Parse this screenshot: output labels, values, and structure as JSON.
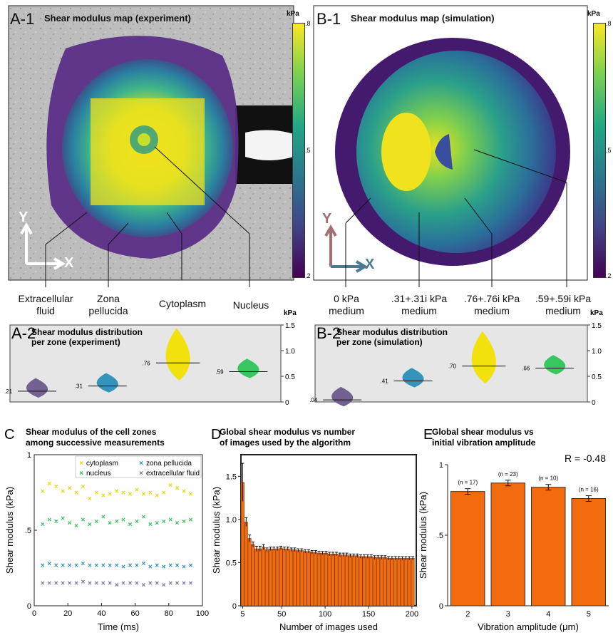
{
  "panelA1": {
    "letter": "A-1",
    "title": "Shear modulus map (experiment)",
    "colorbar_unit": "kPa",
    "colorbar_ticks": [
      ".8",
      ".5",
      ".2"
    ],
    "axis_y": "Y",
    "axis_x": "X",
    "zones": [
      {
        "line1": "Extracellular",
        "line2": "fluid"
      },
      {
        "line1": "Zona",
        "line2": "pellucida"
      },
      {
        "line1": "Cytoplasm",
        "line2": ""
      },
      {
        "line1": "Nucleus",
        "line2": ""
      }
    ]
  },
  "panelB1": {
    "letter": "B-1",
    "title": "Shear modulus map (simulation)",
    "colorbar_unit": "kPa",
    "colorbar_ticks": [
      ".8",
      ".5",
      ".2"
    ],
    "axis_y": "Y",
    "axis_x": "X",
    "zones": [
      {
        "line1": "0 kPa",
        "line2": "medium"
      },
      {
        "line1": ".31+.31i kPa",
        "line2": "medium"
      },
      {
        "line1": ".76+.76i kPa",
        "line2": "medium"
      },
      {
        "line1": ".59+.59i kPa",
        "line2": "medium"
      }
    ]
  },
  "chart_data": [
    {
      "id": "A-2",
      "type": "violin",
      "title": "Shear modulus distribution per zone (experiment)",
      "letter": "A-2",
      "title_line1": "Shear modulus distribution",
      "title_line2": "per zone (experiment)",
      "ylabel_unit": "kPa",
      "ylim": [
        0,
        1.5
      ],
      "yticks": [
        "0",
        "0.5",
        "1.0",
        "1.5"
      ],
      "groups": [
        {
          "median": 0.21,
          "label": ".21",
          "color": "#6b5a8c"
        },
        {
          "median": 0.31,
          "label": ".31",
          "color": "#2a8fb8"
        },
        {
          "median": 0.76,
          "label": ".76",
          "color": "#f2e000"
        },
        {
          "median": 0.59,
          "label": ".59",
          "color": "#2ec45a"
        }
      ]
    },
    {
      "id": "B-2",
      "type": "violin",
      "title": "Shear modulus distribution per zone (simulation)",
      "letter": "B-2",
      "title_line1": "Shear modulus distribution",
      "title_line2": "per zone (simulation)",
      "ylabel_unit": "kPa",
      "ylim": [
        0,
        1.5
      ],
      "yticks": [
        "0",
        "0.5",
        "1.0",
        "1.5"
      ],
      "groups": [
        {
          "median": 0.04,
          "label": ".04",
          "color": "#6b5a8c"
        },
        {
          "median": 0.41,
          "label": ".41",
          "color": "#2a8fb8"
        },
        {
          "median": 0.7,
          "label": ".70",
          "color": "#f2e000"
        },
        {
          "median": 0.66,
          "label": ".66",
          "color": "#2ec45a"
        }
      ]
    },
    {
      "id": "C",
      "type": "scatter",
      "letter": "C",
      "title_line1": "Shear modulus of the cell zones",
      "title_line2": "among successive measurements",
      "xlabel": "Time (ms)",
      "ylabel": "Shear modulus (kPa)",
      "xlim": [
        0,
        100
      ],
      "ylim": [
        0,
        1.0
      ],
      "xticks": [
        "0",
        "20",
        "40",
        "60",
        "80",
        "100"
      ],
      "yticks": [
        {
          "v": 0,
          "t": "0"
        },
        {
          "v": 0.5,
          "t": ".5"
        },
        {
          "v": 1.0,
          "t": "1"
        }
      ],
      "x": [
        5,
        9,
        13,
        17,
        21,
        25,
        29,
        33,
        37,
        41,
        45,
        49,
        53,
        57,
        61,
        65,
        69,
        73,
        77,
        81,
        85,
        89,
        93
      ],
      "series": [
        {
          "name": "cytoplasm",
          "color": "#e6d600",
          "values": [
            0.76,
            0.81,
            0.79,
            0.76,
            0.78,
            0.75,
            0.79,
            0.71,
            0.75,
            0.73,
            0.74,
            0.76,
            0.75,
            0.74,
            0.77,
            0.74,
            0.75,
            0.73,
            0.75,
            0.8,
            0.78,
            0.76,
            0.74
          ]
        },
        {
          "name": "nucleus",
          "color": "#2ec45a",
          "values": [
            0.54,
            0.57,
            0.56,
            0.58,
            0.55,
            0.53,
            0.57,
            0.54,
            0.56,
            0.59,
            0.55,
            0.56,
            0.57,
            0.54,
            0.56,
            0.59,
            0.54,
            0.55,
            0.56,
            0.57,
            0.55,
            0.56,
            0.57
          ]
        },
        {
          "name": "zona pellucida",
          "color": "#2a8fb8",
          "values": [
            0.27,
            0.28,
            0.27,
            0.27,
            0.27,
            0.27,
            0.28,
            0.27,
            0.27,
            0.27,
            0.27,
            0.27,
            0.26,
            0.27,
            0.27,
            0.28,
            0.26,
            0.27,
            0.26,
            0.27,
            0.27,
            0.26,
            0.27
          ]
        },
        {
          "name": "extracellular fluid",
          "color": "#7a6f9a",
          "values": [
            0.15,
            0.15,
            0.15,
            0.15,
            0.15,
            0.15,
            0.16,
            0.15,
            0.15,
            0.15,
            0.15,
            0.14,
            0.15,
            0.15,
            0.15,
            0.14,
            0.15,
            0.15,
            0.14,
            0.15,
            0.15,
            0.15,
            0.15
          ]
        }
      ]
    },
    {
      "id": "D",
      "type": "bar",
      "letter": "D",
      "title_line1": "Global shear modulus vs number",
      "title_line2": "of images used by the algorithm",
      "xlabel": "Number of images used",
      "ylabel": "Shear modulus (kPa)",
      "xlim": [
        3,
        205
      ],
      "ylim": [
        0,
        1.75
      ],
      "xticks": [
        "5",
        "50",
        "100",
        "150",
        "200"
      ],
      "yticks": [
        {
          "v": 0,
          "t": "0"
        },
        {
          "v": 0.5,
          "t": "0.5"
        },
        {
          "v": 1.0,
          "t": "1.0"
        },
        {
          "v": 1.5,
          "t": "1.5"
        }
      ],
      "x": [
        5,
        9,
        13,
        17,
        21,
        25,
        29,
        33,
        37,
        41,
        45,
        49,
        53,
        57,
        61,
        65,
        69,
        73,
        77,
        81,
        85,
        89,
        93,
        97,
        101,
        105,
        109,
        113,
        117,
        121,
        125,
        129,
        133,
        137,
        141,
        145,
        149,
        153,
        157,
        161,
        165,
        169,
        173,
        177,
        181,
        185,
        189,
        193,
        197,
        201
      ],
      "values": [
        1.43,
        0.97,
        0.78,
        0.71,
        0.66,
        0.66,
        0.68,
        0.65,
        0.66,
        0.66,
        0.66,
        0.67,
        0.66,
        0.66,
        0.65,
        0.65,
        0.64,
        0.64,
        0.63,
        0.63,
        0.62,
        0.62,
        0.61,
        0.61,
        0.61,
        0.6,
        0.6,
        0.6,
        0.59,
        0.59,
        0.59,
        0.58,
        0.58,
        0.58,
        0.57,
        0.57,
        0.57,
        0.57,
        0.56,
        0.56,
        0.56,
        0.56,
        0.55,
        0.55,
        0.55,
        0.55,
        0.55,
        0.55,
        0.55,
        0.55
      ],
      "errors": [
        0.22,
        0.05,
        0.04,
        0.03,
        0.03,
        0.03,
        0.03,
        0.02,
        0.02,
        0.02,
        0.02,
        0.02,
        0.02,
        0.02,
        0.02,
        0.02,
        0.02,
        0.02,
        0.02,
        0.02,
        0.02,
        0.02,
        0.02,
        0.02,
        0.02,
        0.02,
        0.02,
        0.02,
        0.02,
        0.02,
        0.02,
        0.02,
        0.02,
        0.02,
        0.02,
        0.02,
        0.02,
        0.02,
        0.02,
        0.02,
        0.02,
        0.02,
        0.02,
        0.02,
        0.02,
        0.02,
        0.02,
        0.02,
        0.02,
        0.02
      ],
      "color": "#f26b0f"
    },
    {
      "id": "E",
      "type": "bar",
      "letter": "E",
      "title_line1": "Global shear modulus vs",
      "title_line2": "initial vibration amplitude",
      "annotation": "R =  -0.48",
      "xlabel": "Vibration amplitude (μm)",
      "ylabel": "Shear modulus (kPa)",
      "ylim": [
        0,
        1.0
      ],
      "yticks": [
        {
          "v": 0,
          "t": "0"
        },
        {
          "v": 0.5,
          "t": ".5"
        },
        {
          "v": 1.0,
          "t": "1"
        }
      ],
      "categories": [
        "2",
        "3",
        "4",
        "5"
      ],
      "values": [
        0.81,
        0.87,
        0.84,
        0.76
      ],
      "errors": [
        0.02,
        0.02,
        0.02,
        0.02
      ],
      "counts": [
        "(n = 17)",
        "(n = 23)",
        "(n = 10)",
        "(n = 16)"
      ],
      "color": "#f26b0f"
    }
  ]
}
